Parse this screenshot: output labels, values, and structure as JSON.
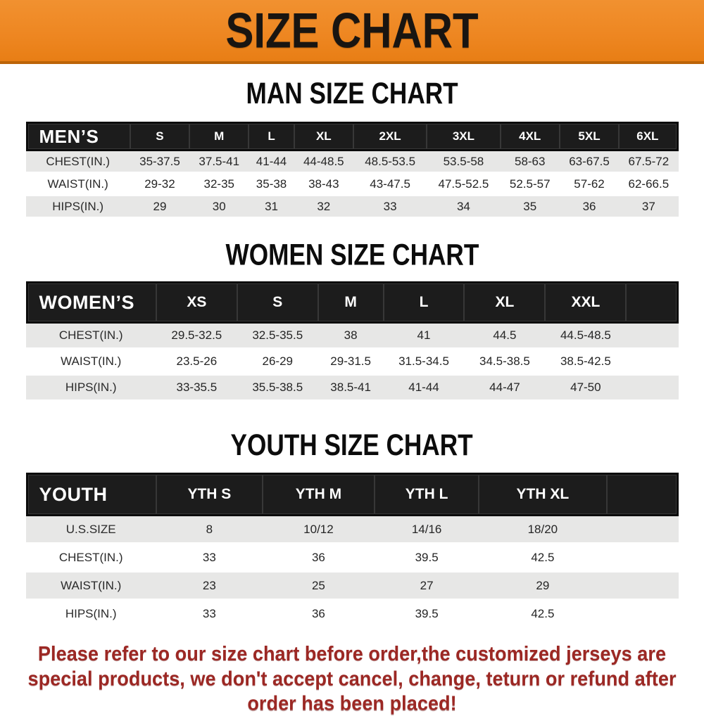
{
  "banner": {
    "title": "SIZE CHART",
    "bg_color": "#ee8722",
    "text_color": "#191511"
  },
  "sections": [
    {
      "id": "men",
      "title": "MAN SIZE CHART",
      "header_label": "MEN’S",
      "columns": [
        "S",
        "M",
        "L",
        "XL",
        "2XL",
        "3XL",
        "4XL",
        "5XL",
        "6XL"
      ],
      "rows": [
        {
          "label": "CHEST(IN.)",
          "values": [
            "35-37.5",
            "37.5-41",
            "41-44",
            "44-48.5",
            "48.5-53.5",
            "53.5-58",
            "58-63",
            "63-67.5",
            "67.5-72"
          ]
        },
        {
          "label": "WAIST(IN.)",
          "values": [
            "29-32",
            "32-35",
            "35-38",
            "38-43",
            "43-47.5",
            "47.5-52.5",
            "52.5-57",
            "57-62",
            "62-66.5"
          ]
        },
        {
          "label": "HIPS(IN.)",
          "values": [
            "29",
            "30",
            "31",
            "32",
            "33",
            "34",
            "35",
            "36",
            "37"
          ]
        }
      ]
    },
    {
      "id": "women",
      "title": "WOMEN SIZE CHART",
      "header_label": "WOMEN’S",
      "columns": [
        "XS",
        "S",
        "M",
        "L",
        "XL",
        "XXL"
      ],
      "rows": [
        {
          "label": "CHEST(IN.)",
          "values": [
            "29.5-32.5",
            "32.5-35.5",
            "38",
            "41",
            "44.5",
            "44.5-48.5"
          ]
        },
        {
          "label": "WAIST(IN.)",
          "values": [
            "23.5-26",
            "26-29",
            "29-31.5",
            "31.5-34.5",
            "34.5-38.5",
            "38.5-42.5"
          ]
        },
        {
          "label": "HIPS(IN.)",
          "values": [
            "33-35.5",
            "35.5-38.5",
            "38.5-41",
            "41-44",
            "44-47",
            "47-50"
          ]
        }
      ]
    },
    {
      "id": "youth",
      "title": "YOUTH SIZE CHART",
      "header_label": "YOUTH",
      "columns": [
        "YTH S",
        "YTH M",
        "YTH L",
        "YTH XL"
      ],
      "rows": [
        {
          "label": "U.S.SIZE",
          "values": [
            "8",
            "10/12",
            "14/16",
            "18/20"
          ]
        },
        {
          "label": "CHEST(IN.)",
          "values": [
            "33",
            "36",
            "39.5",
            "42.5"
          ]
        },
        {
          "label": "WAIST(IN.)",
          "values": [
            "23",
            "25",
            "27",
            "29"
          ]
        },
        {
          "label": "HIPS(IN.)",
          "values": [
            "33",
            "36",
            "39.5",
            "42.5"
          ]
        }
      ]
    }
  ],
  "note": {
    "text": "Please refer to our size chart before order,the customized jerseys are special products, we don't accept cancel, change, teturn or refund after order has been placed!",
    "color": "#9c2824"
  }
}
